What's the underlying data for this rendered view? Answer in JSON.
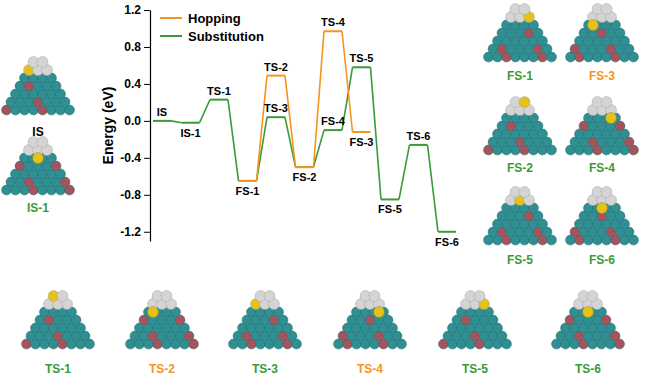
{
  "chart_data": {
    "type": "line",
    "y_label": "Energy (eV)",
    "categories": [
      null,
      null,
      null,
      null,
      null,
      null,
      null,
      null,
      null,
      null,
      null
    ],
    "series": [
      {
        "name": "Hopping",
        "color": "#f7941d",
        "values": [
          null,
          null,
          null,
          -0.65,
          0.49,
          -0.5,
          0.97,
          -0.12,
          null,
          null,
          null
        ],
        "point_labels": [
          null,
          null,
          null,
          null,
          "TS-2",
          null,
          "TS-4",
          "FS-3",
          null,
          null,
          null
        ]
      },
      {
        "name": "Substitution",
        "color": "#3a9a3a",
        "values": [
          0.0,
          -0.02,
          0.23,
          -0.65,
          0.04,
          -0.5,
          -0.1,
          0.58,
          -0.85,
          -0.26,
          -1.2
        ],
        "point_labels": [
          "IS",
          "IS-1",
          "TS-1",
          "FS-1",
          "TS-3",
          "FS-2",
          "FS-4",
          "TS-5",
          "FS-5",
          "TS-6",
          "FS-6"
        ]
      }
    ],
    "ylim": [
      -1.3,
      1.2
    ],
    "yticks": [
      -1.2,
      -0.8,
      -0.4,
      {
        "value": 0,
        "label": "0.0"
      },
      0.4,
      0.8,
      1.2
    ],
    "legend": "upper left",
    "tick_labels": "y"
  },
  "structures": [
    {
      "label": "IS",
      "color": "#000000"
    },
    {
      "label": "IS-1",
      "color": "#3a9a3a"
    },
    {
      "label": "FS-1",
      "color": "#3a9a3a"
    },
    {
      "label": "FS-3",
      "color": "#f7941d"
    },
    {
      "label": "FS-2",
      "color": "#3a9a3a"
    },
    {
      "label": "FS-4",
      "color": "#3a9a3a"
    },
    {
      "label": "FS-5",
      "color": "#3a9a3a"
    },
    {
      "label": "FS-6",
      "color": "#3a9a3a"
    },
    {
      "label": "TS-1",
      "color": "#3a9a3a"
    },
    {
      "label": "TS-2",
      "color": "#f7941d"
    },
    {
      "label": "TS-3",
      "color": "#3a9a3a"
    },
    {
      "label": "TS-4",
      "color": "#f7941d"
    },
    {
      "label": "TS-5",
      "color": "#3a9a3a"
    },
    {
      "label": "TS-6",
      "color": "#3a9a3a"
    }
  ]
}
